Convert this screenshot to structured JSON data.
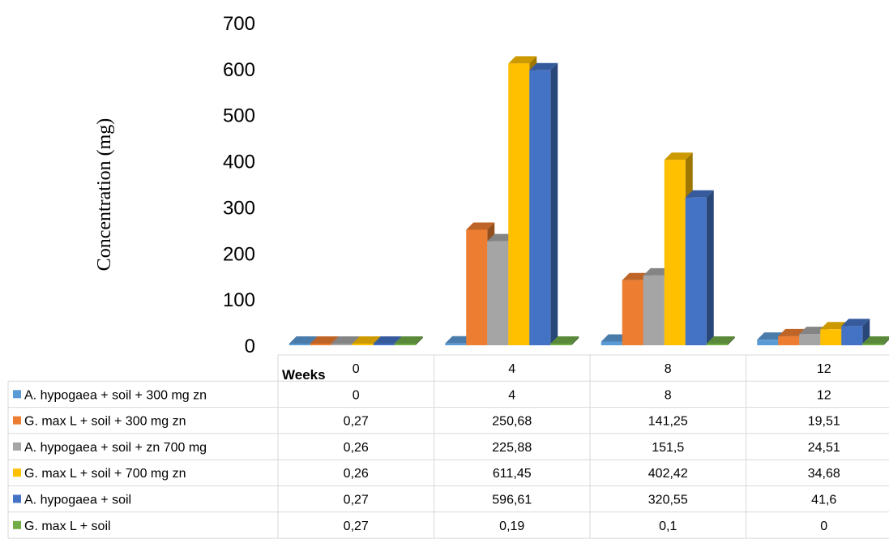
{
  "chart_data": {
    "type": "bar",
    "ylabel": "Concentration (mg)",
    "xlabel": "Weeks",
    "ylim": [
      0,
      700
    ],
    "yticks": [
      "0",
      "100",
      "200",
      "300",
      "400",
      "500",
      "600",
      "700"
    ],
    "categories": [
      "0",
      "4",
      "8",
      "12"
    ],
    "grid": false,
    "legend": "data-table-below",
    "series": [
      {
        "name": "A. hypogaea + soil + 300 mg zn",
        "color": "#5B9BD5",
        "values": [
          0,
          4,
          8,
          12
        ],
        "labels": [
          "0",
          "4",
          "8",
          "12"
        ]
      },
      {
        "name": "G. max L + soil + 300 mg zn",
        "color": "#ED7D31",
        "values": [
          0.27,
          250.68,
          141.25,
          19.51
        ],
        "labels": [
          "0,27",
          "250,68",
          "141,25",
          "19,51"
        ]
      },
      {
        "name": "A. hypogaea + soil + zn 700 mg",
        "color": "#A5A5A5",
        "values": [
          0.26,
          225.88,
          151.5,
          24.51
        ],
        "labels": [
          "0,26",
          "225,88",
          "151,5",
          "24,51"
        ]
      },
      {
        "name": "G. max L + soil + 700 mg zn",
        "color": "#FFC000",
        "values": [
          0.26,
          611.45,
          402.42,
          34.68
        ],
        "labels": [
          "0,26",
          "611,45",
          "402,42",
          "34,68"
        ]
      },
      {
        "name": "A. hypogaea + soil",
        "color": "#4472C4",
        "values": [
          0.27,
          596.61,
          320.55,
          41.6
        ],
        "labels": [
          "0,27",
          "596,61",
          "320,55",
          "41,6"
        ]
      },
      {
        "name": "G. max L + soil",
        "color": "#70AD47",
        "values": [
          0.27,
          0.19,
          0.1,
          0
        ],
        "labels": [
          "0,27",
          "0,19",
          "0,1",
          "0"
        ]
      }
    ]
  }
}
